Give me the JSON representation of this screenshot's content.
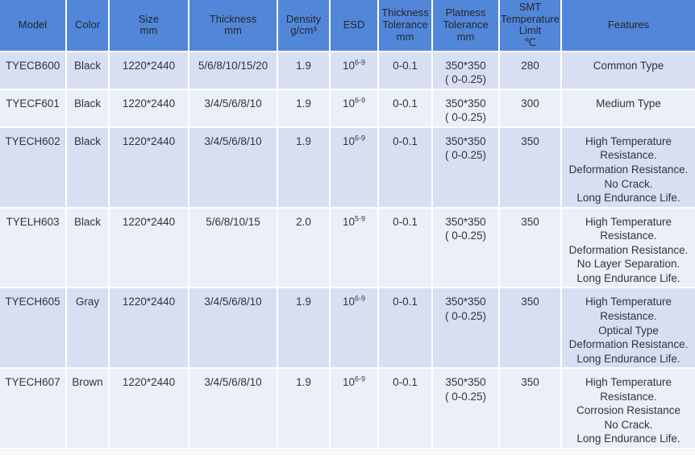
{
  "colors": {
    "header_bg": "#5286d8",
    "band_row_bg": "#d8dff3",
    "pale_row_bg": "#ebeff9",
    "grid_line": "#ffffff",
    "header_text": "#23272f",
    "body_text": "#32343c"
  },
  "table": {
    "columns": [
      {
        "key": "model",
        "label": "Model"
      },
      {
        "key": "color",
        "label": "Size mm",
        "_": ""
      },
      {
        "key": "size",
        "label": ""
      },
      {
        "key": "thickness",
        "label": ""
      },
      {
        "key": "density",
        "label": ""
      },
      {
        "key": "esd",
        "label": ""
      },
      {
        "key": "thickness_tolerance",
        "label": ""
      },
      {
        "key": "platness_tolerance",
        "label": ""
      },
      {
        "key": "smt_limit",
        "label": ""
      },
      {
        "key": "features",
        "label": ""
      }
    ],
    "headers": {
      "model": "Model",
      "color": "Color",
      "size": "Size\nmm",
      "thickness": "Thickness\nmm",
      "density": "Density\ng/cm³",
      "esd": "ESD",
      "thickness_tolerance": "Thickness\nTolerance\nmm",
      "platness_tolerance": "Platness\nTolerance\nmm",
      "smt_limit": "SMT\nTemperature\nLimit\n℃",
      "features": "Features"
    },
    "rows": [
      {
        "model": "TYECB600",
        "color": "Black",
        "size": "1220*2440",
        "thickness": "5/6/8/10/15/20",
        "density": "1.9",
        "esd": {
          "base": "10",
          "sup": "6-9"
        },
        "thickness_tolerance": "0-0.1",
        "platness_tolerance": "350*350\n( 0-0.25)",
        "smt_limit": "280",
        "features": "Common Type"
      },
      {
        "model": "TYECF601",
        "color": "Black",
        "size": "1220*2440",
        "thickness": "3/4/5/6/8/10",
        "density": "1.9",
        "esd": {
          "base": "10",
          "sup": "6-9"
        },
        "thickness_tolerance": "0-0.1",
        "platness_tolerance": "350*350\n( 0-0.25)",
        "smt_limit": "300",
        "features": "Medium Type"
      },
      {
        "model": "TYECH602",
        "color": "Black",
        "size": "1220*2440",
        "thickness": "3/4/5/6/8/10",
        "density": "1.9",
        "esd": {
          "base": "10",
          "sup": "6-9"
        },
        "thickness_tolerance": "0-0.1",
        "platness_tolerance": "350*350\n( 0-0.25)",
        "smt_limit": "350",
        "features": "High Temperature\nResistance.\nDeformation Resistance.\nNo Crack.\nLong Endurance Life."
      },
      {
        "model": "TYELH603",
        "color": "Black",
        "size": "1220*2440",
        "thickness": "5/6/8/10/15",
        "density": "2.0",
        "esd": {
          "base": "10",
          "sup": "5-9"
        },
        "thickness_tolerance": "0-0.1",
        "platness_tolerance": "350*350\n( 0-0.25)",
        "smt_limit": "350",
        "features": "High Temperature\nResistance.\nDeformation Resistance.\nNo Layer Separation.\nLong Endurance Life."
      },
      {
        "model": "TYECH605",
        "color": "Gray",
        "size": "1220*2440",
        "thickness": "3/4/5/6/8/10",
        "density": "1.9",
        "esd": {
          "base": "10",
          "sup": "6-9"
        },
        "thickness_tolerance": "0-0.1",
        "platness_tolerance": "350*350\n( 0-0.25)",
        "smt_limit": "350",
        "features": "High Temperature\nResistance.\nOptical Type\nDeformation Resistance.\nLong Endurance Life."
      },
      {
        "model": "TYECH607",
        "color": "Brown",
        "size": "1220*2440",
        "thickness": "3/4/5/6/8/10",
        "density": "1.9",
        "esd": {
          "base": "10",
          "sup": "6-9"
        },
        "thickness_tolerance": "0-0.1",
        "platness_tolerance": "350*350\n( 0-0.25)",
        "smt_limit": "350",
        "features": "High Temperature\nResistance.\nCorrosion Resistance\nNo Crack.\nLong Endurance Life."
      }
    ]
  }
}
